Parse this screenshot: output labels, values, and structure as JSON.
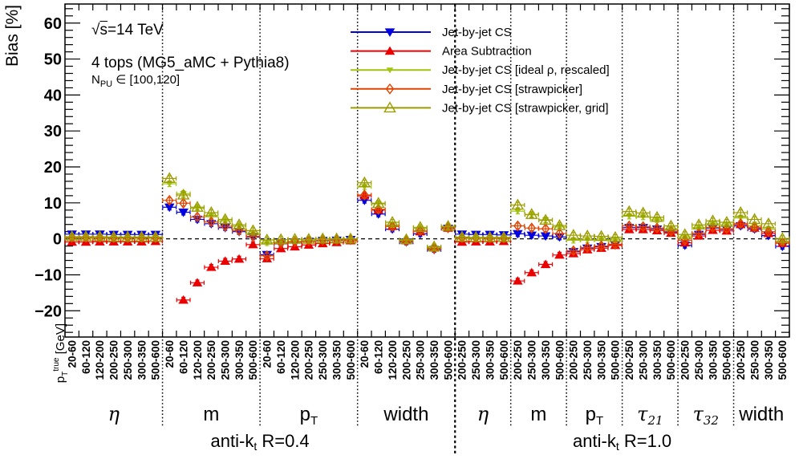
{
  "page": {
    "background": "#ffffff"
  },
  "annotations": {
    "energy_sqrt": "√",
    "energy_s": "s",
    "energy_rest": "=14 TeV",
    "process": "4 tops (MG5_aMC + Pythia8)",
    "npu_main": "N",
    "npu_sub": "PU",
    "npu_rest": " ∈ [100,120]"
  },
  "chart_data": {
    "type": "scatter",
    "ylabel": "Bias [%]",
    "xlabel": {
      "main": "p",
      "sub": "T",
      "sup": "true",
      "rest": " [GeV]"
    },
    "ylim": [
      -27.3,
      65.3
    ],
    "yticks": [
      -20,
      -10,
      0,
      10,
      20,
      30,
      40,
      50,
      60
    ],
    "y_minor_step": 2,
    "zero_line": 0,
    "grid": false,
    "legend_position": "top-right",
    "series": [
      {
        "name": "Jet-by-jet CS",
        "color": "#0202e0",
        "marker": "triangle-down"
      },
      {
        "name": "Area Subtraction",
        "color": "#ea0000",
        "marker": "triangle-up"
      },
      {
        "name": "Jet-by-jet CS [ideal ρ, rescaled]",
        "color": "#a2c411",
        "marker": "triangle-down-small"
      },
      {
        "name": "Jet-by-jet CS [strawpicker]",
        "color": "#e04400",
        "marker": "diamond-open"
      },
      {
        "name": "Jet-by-jet CS [strawpicker, grid]",
        "color": "#9c9c00",
        "marker": "triangle-up-open"
      }
    ],
    "regions": [
      {
        "label": {
          "main": "anti-k",
          "sub": "t",
          "rest": " R=0.4"
        },
        "bin_labels": [
          "20-60",
          "60-120",
          "120-200",
          "200-250",
          "250-300",
          "300-350",
          "500-600"
        ],
        "groups": [
          {
            "label": {
              "text": "η",
              "greek": true
            },
            "values": [
              [
                1.3,
                1.3,
                1.3,
                1.2,
                1.2,
                1.2,
                1.2
              ],
              [
                -0.9,
                -0.9,
                -0.8,
                -0.8,
                -0.8,
                -0.8,
                -0.7
              ],
              [
                0.2,
                0.2,
                0.2,
                0.2,
                0.2,
                0.2,
                0.2
              ],
              [
                0.4,
                0.4,
                0.3,
                0.3,
                0.3,
                0.3,
                0.3
              ],
              [
                0.6,
                0.6,
                0.6,
                0.5,
                0.5,
                0.5,
                0.5
              ]
            ]
          },
          {
            "label": {
              "text": "m"
            },
            "values": [
              [
                8.8,
                7.4,
                5.4,
                4.2,
                3.1,
                2.0,
                0.5
              ],
              [
                null,
                -17.0,
                -12.2,
                -7.9,
                -6.2,
                -5.6,
                -1.6
              ],
              [
                15.3,
                12.6,
                8.5,
                6.5,
                5.0,
                3.5,
                1.6
              ],
              [
                10.7,
                9.9,
                6.1,
                4.7,
                3.5,
                2.3,
                0.7
              ],
              [
                16.8,
                12.2,
                8.8,
                7.3,
                5.4,
                3.9,
                2.3
              ]
            ]
          },
          {
            "label": {
              "text": "p",
              "sub": "T"
            },
            "values": [
              [
                -4.4,
                -1.4,
                -0.9,
                -0.7,
                -0.5,
                -0.4,
                -0.2
              ],
              [
                -5.5,
                -2.7,
                -2.2,
                -1.7,
                -1.3,
                -1.0,
                -0.5
              ],
              [
                -1.1,
                -0.9,
                -0.7,
                -0.5,
                -0.4,
                -0.3,
                -0.2
              ],
              [
                -4.7,
                -1.2,
                -0.8,
                -0.6,
                -0.4,
                -0.3,
                -0.2
              ],
              [
                -0.3,
                -0.2,
                -0.1,
                -0.1,
                0.0,
                0.0,
                0.0
              ]
            ]
          },
          {
            "label": {
              "text": "width"
            },
            "values": [
              [
                10.7,
                6.9,
                2.7,
                -0.9,
                1.4,
                -3.0,
                2.9
              ],
              [
                12.0,
                8.0,
                3.5,
                -0.5,
                2.0,
                -2.5,
                3.0
              ],
              [
                14.5,
                9.7,
                3.9,
                -0.4,
                2.9,
                -2.4,
                3.3
              ],
              [
                12.2,
                8.2,
                3.4,
                -0.6,
                2.2,
                -2.7,
                3.1
              ],
              [
                15.6,
                9.9,
                4.6,
                -0.2,
                3.2,
                -2.2,
                3.5
              ]
            ]
          }
        ]
      },
      {
        "label": {
          "main": "anti-k",
          "sub": "t",
          "rest": " R=1.0"
        },
        "bin_labels": [
          "200-250",
          "250-300",
          "300-350",
          "500-600"
        ],
        "groups": [
          {
            "label": {
              "text": "η",
              "greek": true
            },
            "values": [
              [
                1.3,
                1.2,
                1.2,
                1.1
              ],
              [
                -0.9,
                -0.8,
                -0.8,
                -0.7
              ],
              [
                0.1,
                0.1,
                0.1,
                0.1
              ],
              [
                0.3,
                0.3,
                0.2,
                0.2
              ],
              [
                0.5,
                0.4,
                0.4,
                0.4
              ]
            ]
          },
          {
            "label": {
              "text": "m"
            },
            "values": [
              [
                1.4,
                1.0,
                0.8,
                0.5
              ],
              [
                -11.7,
                -9.4,
                -7.1,
                -4.5
              ],
              [
                7.7,
                6.7,
                5.3,
                3.3
              ],
              [
                3.6,
                3.0,
                2.8,
                1.5
              ],
              [
                9.4,
                6.8,
                5.2,
                3.7
              ]
            ]
          },
          {
            "label": {
              "text": "p",
              "sub": "T"
            },
            "values": [
              [
                -3.6,
                -2.6,
                -2.2,
                -1.7
              ],
              [
                -4.1,
                -3.0,
                -2.6,
                -1.8
              ],
              [
                -0.4,
                -0.3,
                -0.3,
                -0.3
              ],
              [
                -3.3,
                -2.4,
                -2.0,
                -1.5
              ],
              [
                1.0,
                0.8,
                0.7,
                0.4
              ]
            ]
          },
          {
            "label": {
              "text": "τ",
              "sub": "21",
              "greek": true
            },
            "values": [
              [
                3.1,
                3.1,
                2.7,
                1.9
              ],
              [
                2.6,
                2.6,
                2.3,
                1.6
              ],
              [
                6.3,
                6.1,
                5.3,
                2.8
              ],
              [
                3.6,
                3.4,
                3.0,
                2.1
              ],
              [
                7.6,
                7.2,
                6.0,
                3.6
              ]
            ]
          },
          {
            "label": {
              "text": "τ",
              "sub": "32",
              "greek": true
            },
            "values": [
              [
                -1.8,
                1.2,
                3.0,
                2.6
              ],
              [
                -1.1,
                0.8,
                2.4,
                2.2
              ],
              [
                0.5,
                3.1,
                4.2,
                3.9
              ],
              [
                -0.4,
                1.6,
                3.2,
                2.8
              ],
              [
                1.2,
                3.9,
                5.0,
                4.6
              ]
            ]
          },
          {
            "label": {
              "text": "width"
            },
            "values": [
              [
                3.6,
                2.7,
                0.9,
                -2.1
              ],
              [
                4.0,
                3.0,
                1.5,
                -1.2
              ],
              [
                5.8,
                3.6,
                2.7,
                -0.7
              ],
              [
                4.2,
                3.2,
                2.0,
                -1.0
              ],
              [
                7.3,
                5.4,
                4.2,
                0.1
              ]
            ]
          }
        ]
      }
    ]
  }
}
